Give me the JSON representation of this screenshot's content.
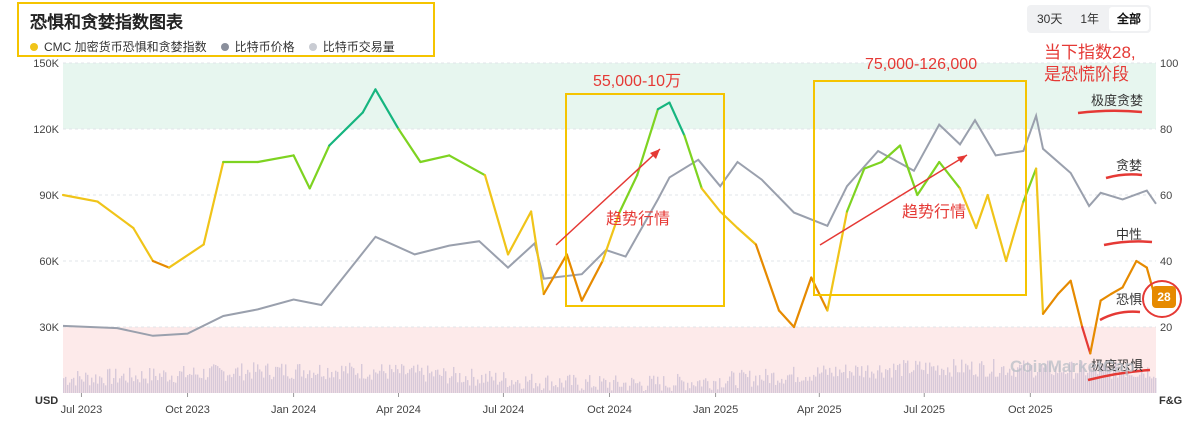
{
  "header": {
    "title": "恐惧和贪婪指数图表",
    "legend": [
      {
        "label": "CMC 加密货币恐惧和贪婪指数",
        "color": "#f0c419"
      },
      {
        "label": "比特币价格",
        "color": "#8a8f9c"
      },
      {
        "label": "比特币交易量",
        "color": "#c9ccd3"
      }
    ]
  },
  "range_buttons": [
    {
      "label": "30天",
      "active": false
    },
    {
      "label": "1年",
      "active": false
    },
    {
      "label": "全部",
      "active": true
    }
  ],
  "chart_data": {
    "type": "line",
    "x_axis": {
      "ticks": [
        "Jul 2023",
        "Oct 2023",
        "Jan 2024",
        "Apr 2024",
        "Jul 2024",
        "Oct 2024",
        "Jan 2025",
        "Apr 2025",
        "Jul 2025",
        "Oct 2025"
      ]
    },
    "y_axis_left": {
      "label": "USD",
      "ticks": [
        "150K",
        "120K",
        "90K",
        "60K",
        "30K"
      ],
      "range": [
        0,
        150000
      ]
    },
    "y_axis_right": {
      "label": "F&G",
      "ticks": [
        "100",
        "80",
        "60",
        "40",
        "20"
      ],
      "range": [
        0,
        100
      ]
    },
    "zones": {
      "extreme_greed_from": 80,
      "extreme_fear_below": 20
    },
    "series": [
      {
        "name": "CMC 加密货币恐惧和贪婪指数",
        "axis": "right",
        "color_scale": "fear-greed",
        "x": [
          "2023-06-15",
          "2023-07-15",
          "2023-08-15",
          "2023-09-01",
          "2023-09-15",
          "2023-10-15",
          "2023-11-01",
          "2023-12-01",
          "2024-01-01",
          "2024-01-15",
          "2024-02-01",
          "2024-03-01",
          "2024-03-12",
          "2024-04-01",
          "2024-04-20",
          "2024-05-15",
          "2024-06-15",
          "2024-07-05",
          "2024-07-25",
          "2024-08-05",
          "2024-08-25",
          "2024-09-07",
          "2024-09-25",
          "2024-10-10",
          "2024-10-25",
          "2024-11-12",
          "2024-11-22",
          "2024-12-05",
          "2024-12-20",
          "2025-01-05",
          "2025-01-20",
          "2025-02-05",
          "2025-02-25",
          "2025-03-10",
          "2025-03-25",
          "2025-04-08",
          "2025-04-25",
          "2025-05-10",
          "2025-05-25",
          "2025-06-10",
          "2025-06-25",
          "2025-07-14",
          "2025-08-01",
          "2025-08-15",
          "2025-08-25",
          "2025-09-10",
          "2025-09-25",
          "2025-10-06",
          "2025-10-12",
          "2025-10-25",
          "2025-11-05",
          "2025-11-15",
          "2025-11-22",
          "2025-12-01",
          "2025-12-10",
          "2025-12-20",
          "2026-01-01",
          "2026-01-10",
          "2026-01-18"
        ],
        "values": [
          60,
          58,
          50,
          40,
          38,
          45,
          70,
          70,
          72,
          62,
          75,
          85,
          92,
          80,
          70,
          72,
          66,
          42,
          55,
          30,
          42,
          28,
          40,
          55,
          66,
          86,
          88,
          78,
          62,
          55,
          50,
          45,
          25,
          20,
          35,
          25,
          55,
          68,
          70,
          75,
          60,
          70,
          62,
          50,
          60,
          40,
          58,
          68,
          24,
          30,
          34,
          20,
          12,
          28,
          30,
          32,
          40,
          38,
          28
        ]
      },
      {
        "name": "比特币价格",
        "axis": "left",
        "x": [
          "2023-06-15",
          "2023-08-01",
          "2023-09-01",
          "2023-10-01",
          "2023-11-01",
          "2023-12-01",
          "2024-01-01",
          "2024-01-25",
          "2024-03-12",
          "2024-04-15",
          "2024-05-15",
          "2024-06-10",
          "2024-07-05",
          "2024-07-28",
          "2024-08-05",
          "2024-09-07",
          "2024-09-28",
          "2024-10-15",
          "2024-11-12",
          "2024-11-22",
          "2024-12-17",
          "2025-01-05",
          "2025-01-20",
          "2025-02-10",
          "2025-03-10",
          "2025-04-08",
          "2025-04-25",
          "2025-05-22",
          "2025-06-22",
          "2025-07-14",
          "2025-08-01",
          "2025-08-14",
          "2025-09-01",
          "2025-09-25",
          "2025-10-06",
          "2025-10-12",
          "2025-11-05",
          "2025-11-21",
          "2025-12-01",
          "2025-12-20",
          "2026-01-10",
          "2026-01-18"
        ],
        "values": [
          30500,
          29500,
          26000,
          27000,
          35000,
          38000,
          42500,
          40000,
          71000,
          63000,
          67000,
          69000,
          57000,
          68000,
          52000,
          54000,
          65000,
          62000,
          88000,
          98000,
          106000,
          94000,
          105000,
          97000,
          82000,
          76000,
          94000,
          110000,
          101000,
          122000,
          113000,
          124000,
          108000,
          110000,
          126000,
          111000,
          100000,
          85000,
          91000,
          88000,
          92000,
          86000
        ]
      }
    ]
  },
  "annotations": {
    "box1_label": "55,000-10万",
    "box2_label": "75,000-126,000",
    "trend1": "趋势行情",
    "trend2": "趋势行情",
    "top_right_line1": "当下指数28,",
    "top_right_line2": "是恐慌阶段",
    "extreme_greed": "极度贪婪",
    "greed": "贪婪",
    "neutral": "中性",
    "fear": "恐惧",
    "extreme_fear": "极度恐惧",
    "current_value": "28"
  },
  "watermark": "CoinMarketCap"
}
